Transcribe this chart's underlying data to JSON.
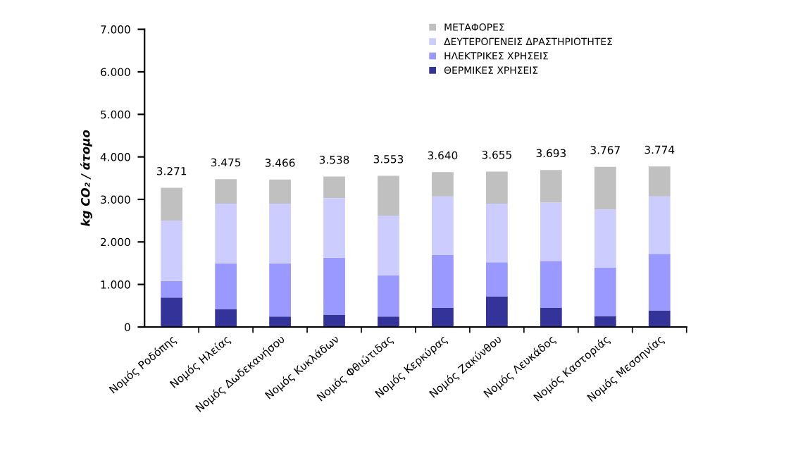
{
  "chart_data": {
    "type": "bar",
    "stacked": true,
    "ylabel": "kg CO₂ / άτομο",
    "categories": [
      "Νομός Ροδόπης",
      "Νομός Ηλείας",
      "Νομός Δωδεκανήσου",
      "Νομός Κυκλάδων",
      "Νομός Φθιώτιδας",
      "Νομός Κερκύρας",
      "Νομός Ζακύνθου",
      "Νομός Λευκάδος",
      "Νομός Καστοριάς",
      "Νομός Μεσσηνίας"
    ],
    "series": [
      {
        "name": "ΘΕΡΜΙΚΕΣ ΧΡΗΣΕΙΣ",
        "color": "#333399",
        "values": [
          690,
          420,
          245,
          290,
          245,
          455,
          720,
          455,
          255,
          390
        ]
      },
      {
        "name": "ΗΛΕΚΤΡΙΚΕΣ ΧΡΗΣΕΙΣ",
        "color": "#9999ff",
        "values": [
          390,
          1070,
          1245,
          1340,
          975,
          1235,
          800,
          1100,
          1135,
          1330
        ]
      },
      {
        "name": "ΔΕΥΤΕΡΟΓΕΝΕΙΣ ΔΡΑΣΤΗΡΙΟΤΗΤΕΣ",
        "color": "#ccccff",
        "values": [
          1420,
          1410,
          1410,
          1400,
          1400,
          1380,
          1380,
          1375,
          1375,
          1350
        ]
      },
      {
        "name": "ΜΕΤΑΦΟΡΕΣ",
        "color": "#c0c0c0",
        "values": [
          771,
          575,
          566,
          508,
          933,
          570,
          755,
          763,
          1002,
          704
        ]
      }
    ],
    "totals": [
      "3.271",
      "3.475",
      "3.466",
      "3.538",
      "3.553",
      "3.640",
      "3.655",
      "3.693",
      "3.767",
      "3.774"
    ],
    "ylim": [
      0,
      7000
    ],
    "yticks": [
      0,
      {
        "value": 1000,
        "label": "1.000"
      },
      {
        "value": 2000,
        "label": "2.000"
      },
      {
        "value": 3000,
        "label": "3.000"
      },
      {
        "value": 4000,
        "label": "4.000"
      },
      {
        "value": 5000,
        "label": "5.000"
      },
      {
        "value": 6000,
        "label": "6.000"
      },
      {
        "value": 7000,
        "label": "7.000"
      }
    ],
    "grid": false,
    "legend": "top right"
  }
}
